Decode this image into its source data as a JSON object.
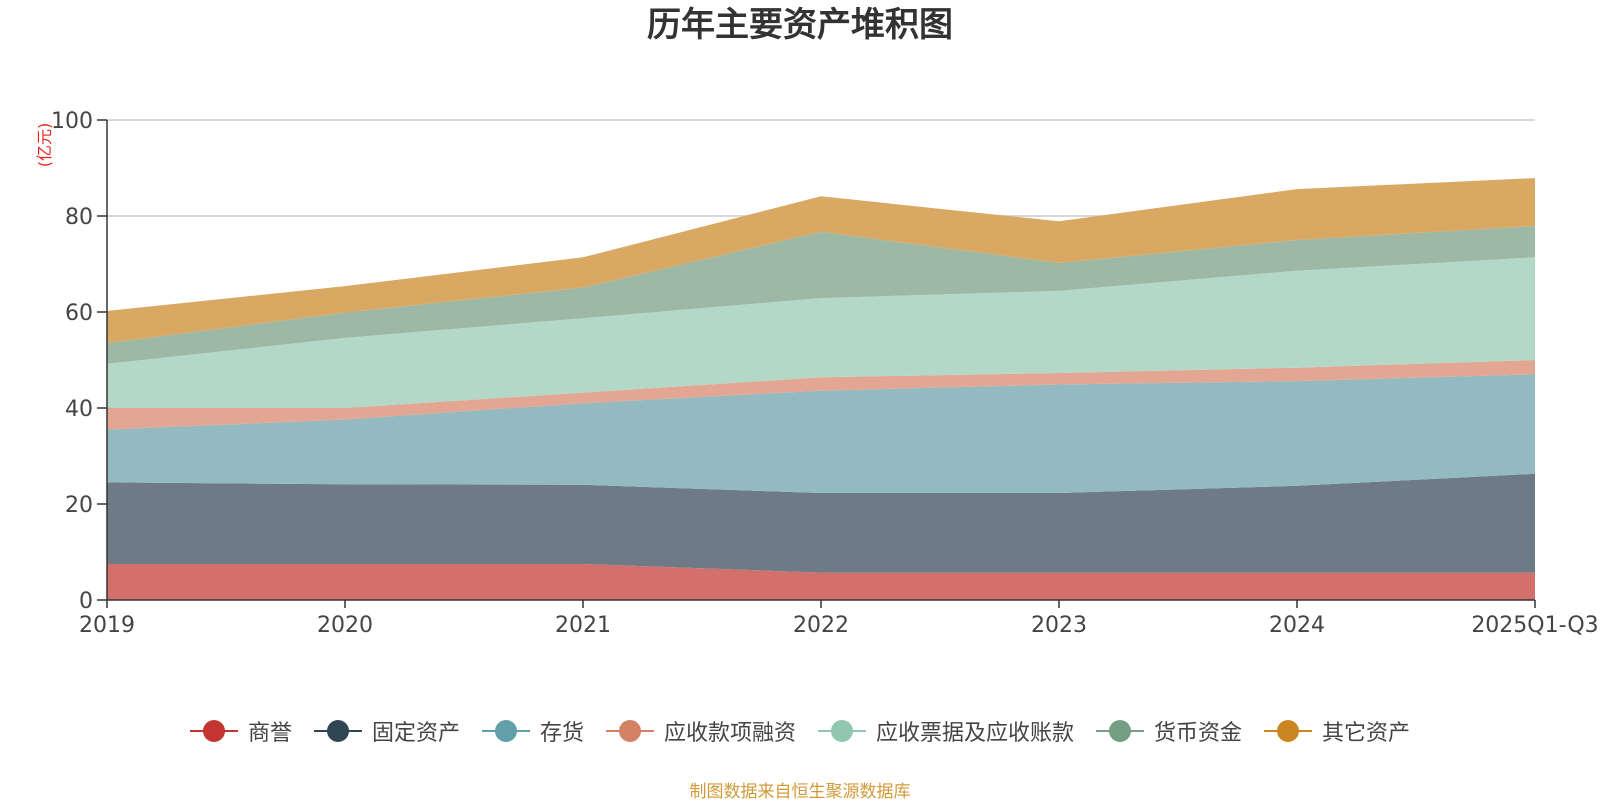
{
  "chart_data": {
    "type": "area",
    "stacked": true,
    "title": "历年主要资产堆积图",
    "ylabel": "(亿元)",
    "xlabel": "",
    "categories": [
      "2019",
      "2020",
      "2021",
      "2022",
      "2023",
      "2024",
      "2025Q1-Q3"
    ],
    "ylim": [
      0,
      100
    ],
    "yticks": [
      0,
      20,
      40,
      60,
      80,
      100
    ],
    "grid": true,
    "legend_position": "bottom",
    "series": [
      {
        "name": "商誉",
        "color": "#c23531",
        "fill": "#d4706c",
        "values": [
          7.5,
          7.5,
          7.5,
          5.7,
          5.7,
          5.7,
          5.7
        ]
      },
      {
        "name": "固定资产",
        "color": "#2f4554",
        "fill": "#6e7b87",
        "values": [
          17.0,
          16.6,
          16.5,
          16.6,
          16.6,
          18.1,
          20.6
        ]
      },
      {
        "name": "存货",
        "color": "#61a0a8",
        "fill": "#92bac0",
        "values": [
          11.0,
          13.5,
          17.0,
          21.3,
          22.6,
          21.8,
          20.7
        ]
      },
      {
        "name": "应收款项融资",
        "color": "#d48265",
        "fill": "#e2a692",
        "values": [
          4.5,
          2.4,
          2.2,
          2.8,
          2.4,
          2.8,
          3.0
        ]
      },
      {
        "name": "应收票据及应收账款",
        "color": "#91c7ae",
        "fill": "#b4d8c7",
        "values": [
          9.2,
          14.6,
          15.5,
          16.5,
          17.1,
          20.2,
          21.4
        ]
      },
      {
        "name": "货币资金",
        "color": "#749f83",
        "fill": "#9db9a5",
        "values": [
          4.3,
          5.3,
          6.4,
          13.8,
          5.8,
          6.4,
          6.5
        ]
      },
      {
        "name": "其它资产",
        "color": "#ca8622",
        "fill": "#d9a963",
        "values": [
          6.7,
          5.5,
          6.3,
          7.4,
          8.7,
          10.6,
          10.0
        ]
      }
    ]
  },
  "source_note": "制图数据来自恒生聚源数据库"
}
